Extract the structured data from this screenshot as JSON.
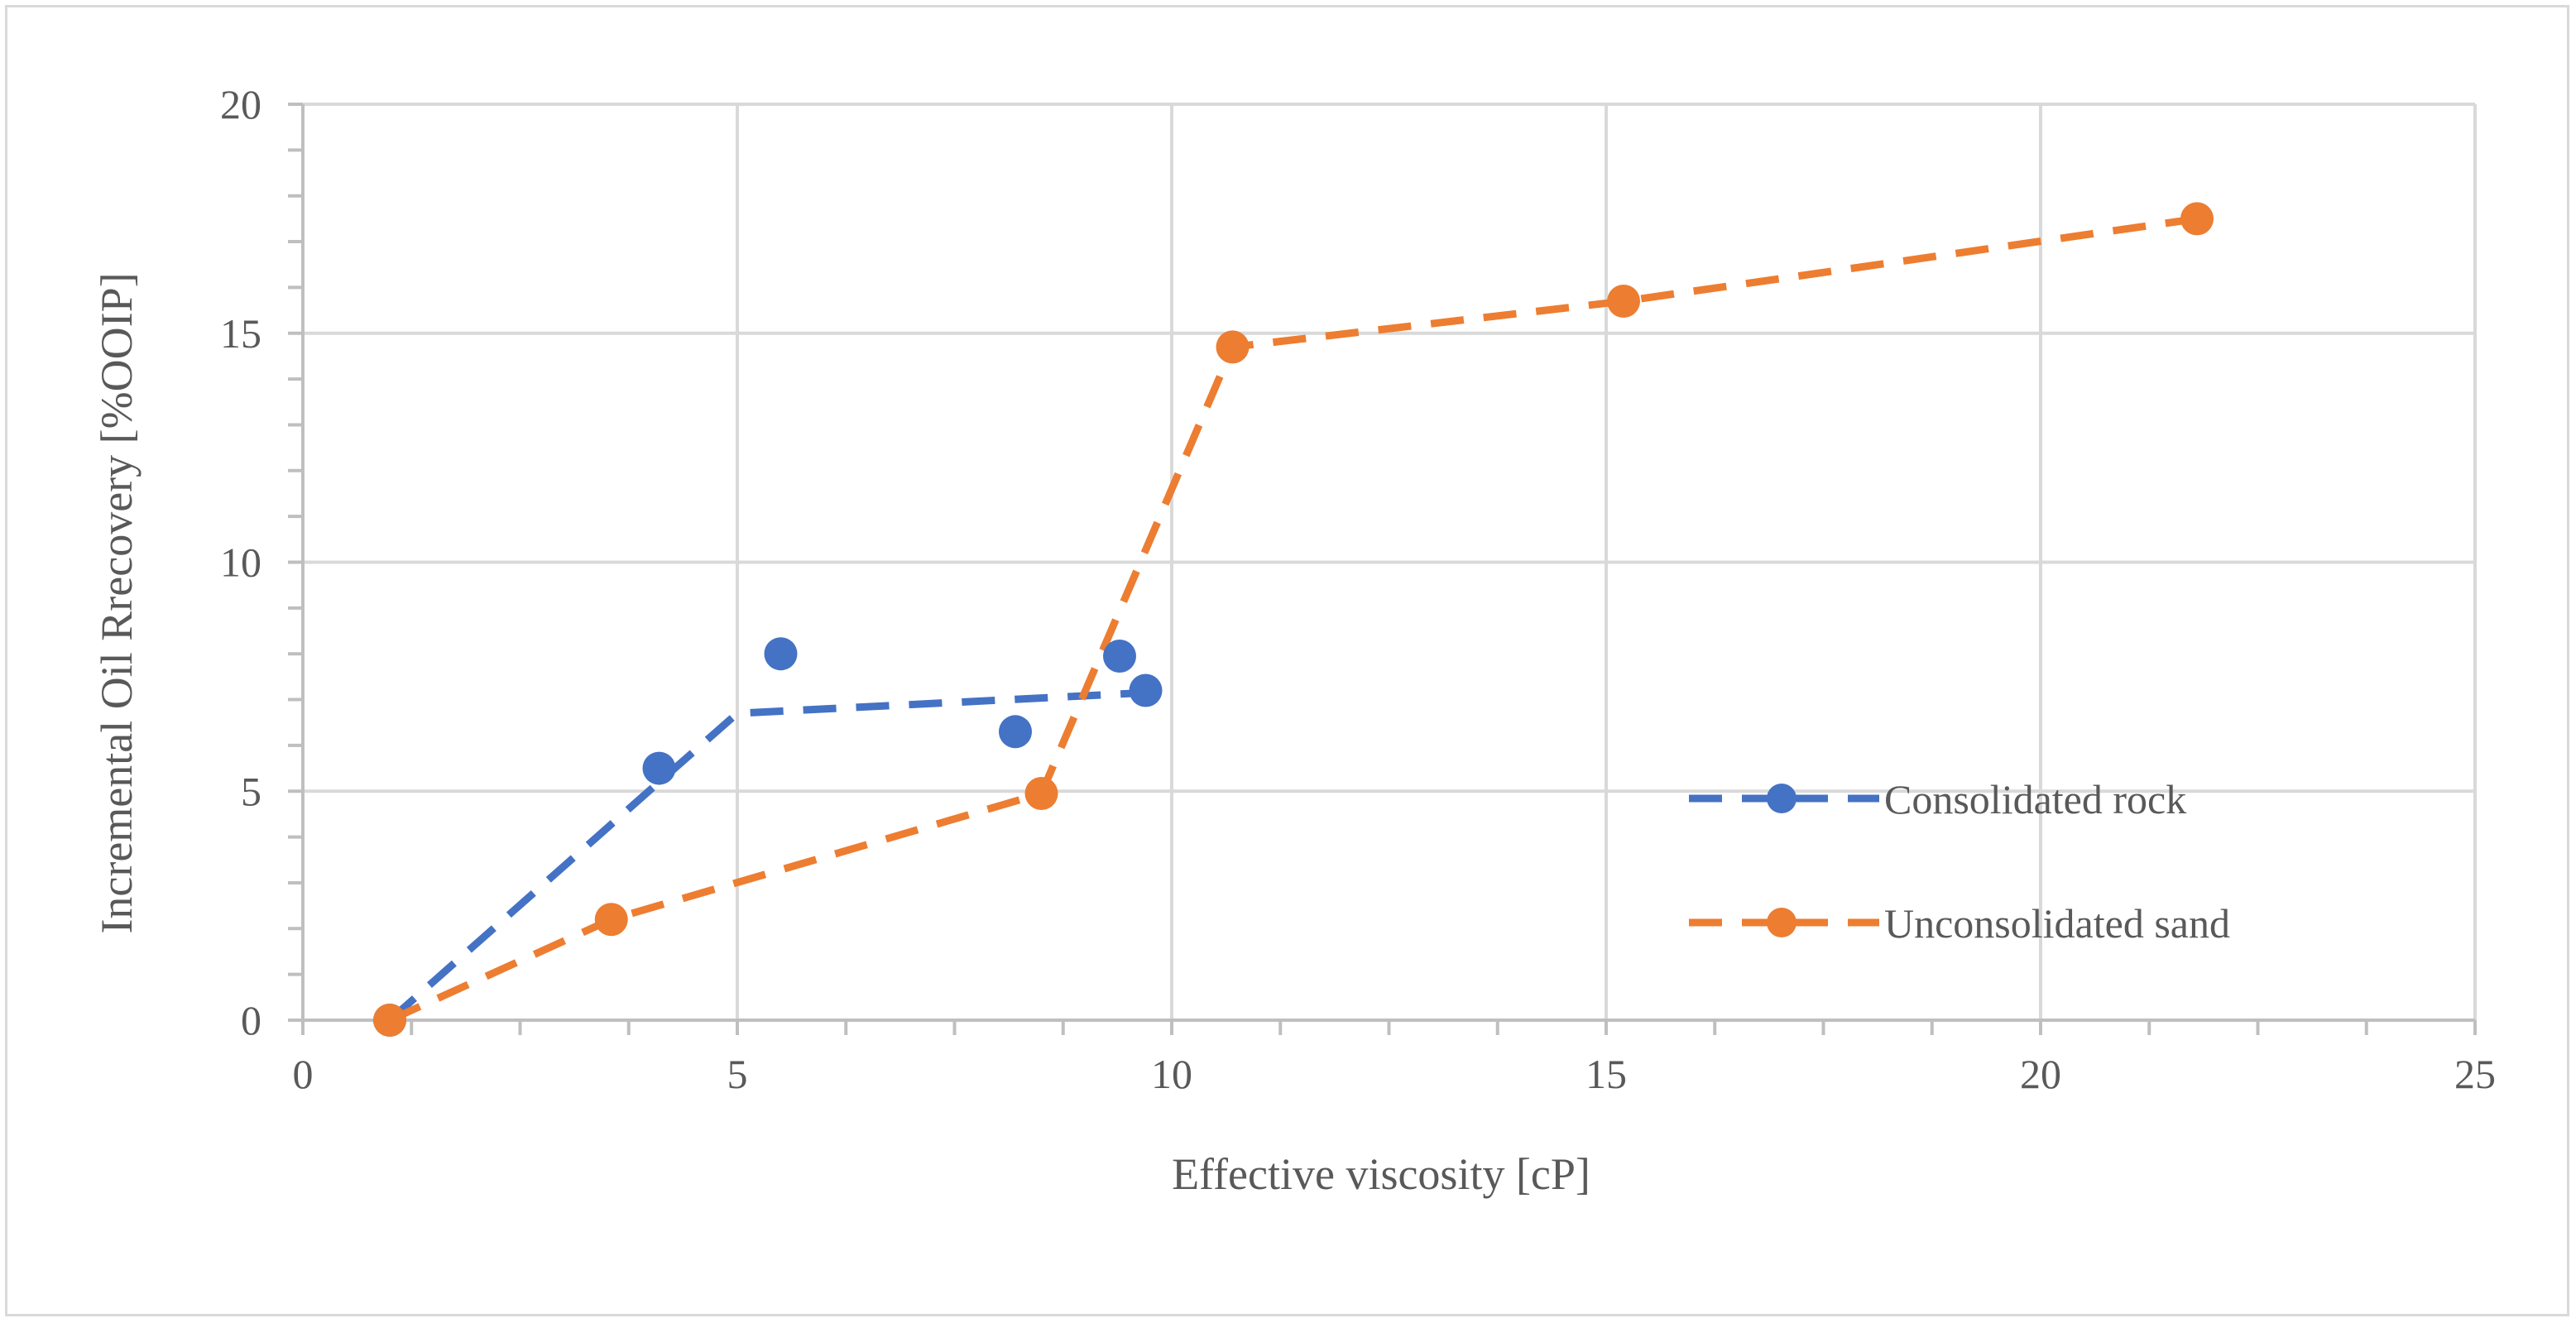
{
  "chart_data": {
    "type": "scatter",
    "title": "",
    "xlabel": "Effective viscosity [cP]",
    "ylabel": "Incremental Oil Rrecovery [%OOIP]",
    "xlim": [
      0,
      25
    ],
    "ylim": [
      0,
      20
    ],
    "x_ticks": [
      0,
      5,
      10,
      15,
      20,
      25
    ],
    "y_ticks": [
      0,
      5,
      10,
      15,
      20
    ],
    "x_minor_step": 1.25,
    "y_minor_step": 1,
    "grid": true,
    "legend_position": "right",
    "series": [
      {
        "name": "Consolidated rock",
        "color": "#4472c4",
        "points": [
          {
            "x": 1.0,
            "y": 0.0
          },
          {
            "x": 4.1,
            "y": 5.5
          },
          {
            "x": 5.5,
            "y": 8.0
          },
          {
            "x": 8.2,
            "y": 6.3
          },
          {
            "x": 9.4,
            "y": 7.95
          },
          {
            "x": 9.7,
            "y": 7.2
          }
        ],
        "trend": [
          {
            "x": 1.0,
            "y": 0.0
          },
          {
            "x": 4.1,
            "y": 5.2
          },
          {
            "x": 5.0,
            "y": 6.7
          },
          {
            "x": 9.7,
            "y": 7.15
          }
        ]
      },
      {
        "name": "Unconsolidated sand",
        "color": "#ed7d31",
        "points": [
          {
            "x": 1.0,
            "y": 0.0
          },
          {
            "x": 3.55,
            "y": 2.2
          },
          {
            "x": 8.5,
            "y": 4.95
          },
          {
            "x": 10.7,
            "y": 14.7
          },
          {
            "x": 15.2,
            "y": 15.7
          },
          {
            "x": 21.8,
            "y": 17.5
          }
        ],
        "trend": [
          {
            "x": 1.0,
            "y": 0.0
          },
          {
            "x": 3.55,
            "y": 2.2
          },
          {
            "x": 8.5,
            "y": 4.95
          },
          {
            "x": 10.7,
            "y": 14.7
          },
          {
            "x": 15.2,
            "y": 15.7
          },
          {
            "x": 21.8,
            "y": 17.5
          }
        ]
      }
    ]
  }
}
